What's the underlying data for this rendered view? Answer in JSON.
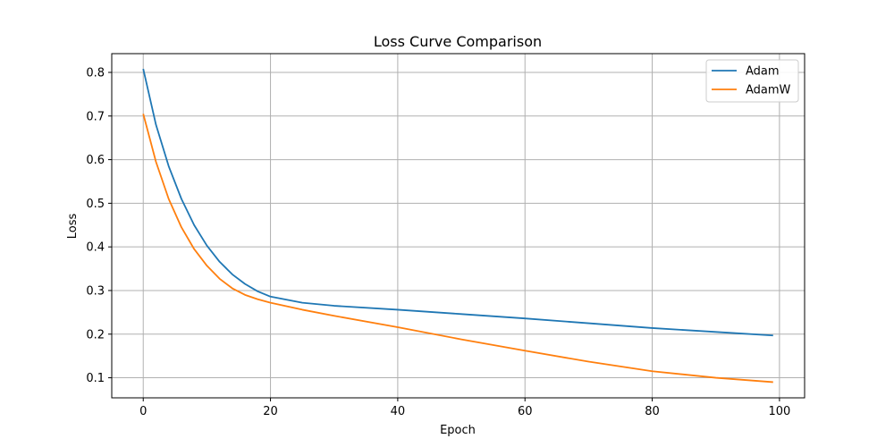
{
  "chart_data": {
    "type": "line",
    "title": "Loss Curve Comparison",
    "xlabel": "Epoch",
    "ylabel": "Loss",
    "xlim": [
      -4.95,
      103.95
    ],
    "ylim": [
      0.054,
      0.843
    ],
    "xticks": [
      0,
      20,
      40,
      60,
      80,
      100
    ],
    "yticks": [
      0.1,
      0.2,
      0.3,
      0.4,
      0.5,
      0.6,
      0.7,
      0.8
    ],
    "grid": true,
    "legend": "top-right",
    "series": [
      {
        "name": "Adam",
        "color": "#1f77b4",
        "x": [
          0,
          2,
          4,
          6,
          8,
          10,
          12,
          14,
          16,
          18,
          20,
          25,
          30,
          40,
          50,
          60,
          70,
          80,
          90,
          99
        ],
        "y": [
          0.808,
          0.68,
          0.585,
          0.51,
          0.45,
          0.403,
          0.366,
          0.337,
          0.315,
          0.298,
          0.286,
          0.272,
          0.265,
          0.256,
          0.246,
          0.236,
          0.225,
          0.214,
          0.205,
          0.197
        ]
      },
      {
        "name": "AdamW",
        "color": "#ff7f0e",
        "x": [
          0,
          2,
          4,
          6,
          8,
          10,
          12,
          14,
          16,
          18,
          20,
          25,
          30,
          40,
          50,
          60,
          70,
          80,
          90,
          99
        ],
        "y": [
          0.705,
          0.595,
          0.51,
          0.445,
          0.395,
          0.357,
          0.327,
          0.305,
          0.29,
          0.28,
          0.272,
          0.256,
          0.242,
          0.216,
          0.188,
          0.162,
          0.137,
          0.115,
          0.1,
          0.09
        ]
      }
    ]
  }
}
